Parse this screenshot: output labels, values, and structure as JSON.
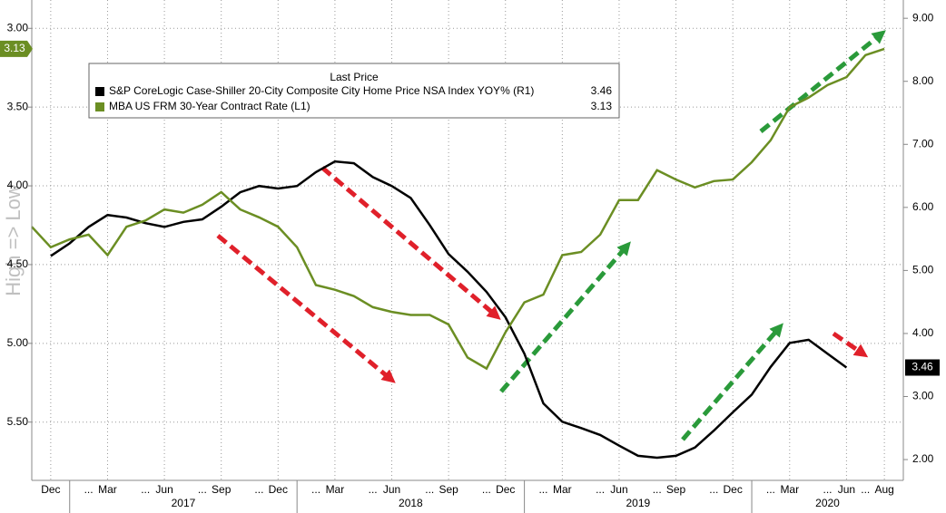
{
  "chart_data": {
    "type": "line",
    "legend_title": "Last Price",
    "y_label": "High => Low",
    "y_inverted": true,
    "ylim": [
      2.82,
      5.87
    ],
    "yticks": [
      {
        "value": 3.0,
        "label": "3.00"
      },
      {
        "value": 3.5,
        "label": "3.50"
      },
      {
        "value": 4.0,
        "label": "4.00"
      },
      {
        "value": 4.5,
        "label": "4.50"
      },
      {
        "value": 5.0,
        "label": "5.00"
      },
      {
        "value": 5.5,
        "label": "5.50"
      }
    ],
    "y2lim": [
      1.67,
      9.29
    ],
    "y2ticks": [
      {
        "value": 2,
        "label": "2.00"
      },
      {
        "value": 3,
        "label": "3.00"
      },
      {
        "value": 4,
        "label": "4.00"
      },
      {
        "value": 5,
        "label": "5.00"
      },
      {
        "value": 6,
        "label": "6.00"
      },
      {
        "value": 7,
        "label": "7.00"
      },
      {
        "value": 8,
        "label": "8.00"
      },
      {
        "value": 9,
        "label": "9.00"
      }
    ],
    "xlim": [
      "2016-11",
      "2020-09"
    ],
    "xticks": [
      {
        "value": "2016-12",
        "label": "Dec"
      },
      {
        "value": "2017-02",
        "label": "..."
      },
      {
        "value": "2017-03",
        "label": "Mar"
      },
      {
        "value": "2017-05",
        "label": "..."
      },
      {
        "value": "2017-06",
        "label": "Jun"
      },
      {
        "value": "2017-08",
        "label": "..."
      },
      {
        "value": "2017-09",
        "label": "Sep"
      },
      {
        "value": "2017-11",
        "label": "..."
      },
      {
        "value": "2017-12",
        "label": "Dec"
      },
      {
        "value": "2018-02",
        "label": "..."
      },
      {
        "value": "2018-03",
        "label": "Mar"
      },
      {
        "value": "2018-05",
        "label": "..."
      },
      {
        "value": "2018-06",
        "label": "Jun"
      },
      {
        "value": "2018-08",
        "label": "..."
      },
      {
        "value": "2018-09",
        "label": "Sep"
      },
      {
        "value": "2018-11",
        "label": "..."
      },
      {
        "value": "2018-12",
        "label": "Dec"
      },
      {
        "value": "2019-02",
        "label": "..."
      },
      {
        "value": "2019-03",
        "label": "Mar"
      },
      {
        "value": "2019-05",
        "label": "..."
      },
      {
        "value": "2019-06",
        "label": "Jun"
      },
      {
        "value": "2019-08",
        "label": "..."
      },
      {
        "value": "2019-09",
        "label": "Sep"
      },
      {
        "value": "2019-11",
        "label": "..."
      },
      {
        "value": "2019-12",
        "label": "Dec"
      },
      {
        "value": "2020-02",
        "label": "..."
      },
      {
        "value": "2020-03",
        "label": "Mar"
      },
      {
        "value": "2020-05",
        "label": "..."
      },
      {
        "value": "2020-06",
        "label": "Jun"
      },
      {
        "value": "2020-07",
        "label": "..."
      },
      {
        "value": "2020-08",
        "label": "Aug"
      }
    ],
    "years": [
      "2017",
      "2018",
      "2019",
      "2020"
    ],
    "grid": true,
    "series": [
      {
        "name": "S&P CoreLogic Case-Shiller 20-City Composite City Home Price NSA Index YOY%  (R1)",
        "color": "#000000",
        "axis": "y2",
        "x": [
          "2016-12",
          "2017-01",
          "2017-02",
          "2017-03",
          "2017-04",
          "2017-05",
          "2017-06",
          "2017-07",
          "2017-08",
          "2017-09",
          "2017-10",
          "2017-11",
          "2017-12",
          "2018-01",
          "2018-02",
          "2018-03",
          "2018-04",
          "2018-05",
          "2018-06",
          "2018-07",
          "2018-08",
          "2018-09",
          "2018-10",
          "2018-11",
          "2018-12",
          "2019-01",
          "2019-02",
          "2019-03",
          "2019-04",
          "2019-05",
          "2019-06",
          "2019-07",
          "2019-08",
          "2019-09",
          "2019-10",
          "2019-11",
          "2019-12",
          "2020-01",
          "2020-02",
          "2020-03",
          "2020-04",
          "2020-05",
          "2020-06"
        ],
        "values": [
          5.23,
          5.43,
          5.69,
          5.88,
          5.84,
          5.75,
          5.69,
          5.77,
          5.81,
          6.01,
          6.24,
          6.34,
          6.3,
          6.34,
          6.56,
          6.73,
          6.7,
          6.48,
          6.34,
          6.15,
          5.72,
          5.26,
          4.98,
          4.66,
          4.26,
          3.68,
          2.89,
          2.6,
          2.5,
          2.39,
          2.22,
          2.06,
          2.03,
          2.06,
          2.19,
          2.46,
          2.75,
          3.03,
          3.47,
          3.85,
          3.9,
          3.68,
          3.46
        ]
      },
      {
        "name": "MBA US FRM 30-Year Contract Rate  (L1)",
        "color": "#6b8e23",
        "axis": "y",
        "x": [
          "2016-11",
          "2016-12",
          "2017-01",
          "2017-02",
          "2017-03",
          "2017-04",
          "2017-05",
          "2017-06",
          "2017-07",
          "2017-08",
          "2017-09",
          "2017-10",
          "2017-11",
          "2017-12",
          "2018-01",
          "2018-02",
          "2018-03",
          "2018-04",
          "2018-05",
          "2018-06",
          "2018-07",
          "2018-08",
          "2018-09",
          "2018-10",
          "2018-11",
          "2018-12",
          "2019-01",
          "2019-02",
          "2019-03",
          "2019-04",
          "2019-05",
          "2019-06",
          "2019-07",
          "2019-08",
          "2019-09",
          "2019-10",
          "2019-11",
          "2019-12",
          "2020-01",
          "2020-02",
          "2020-03",
          "2020-04",
          "2020-05",
          "2020-06",
          "2020-07",
          "2020-08"
        ],
        "values": [
          4.26,
          4.39,
          4.34,
          4.31,
          4.44,
          4.26,
          4.22,
          4.15,
          4.17,
          4.12,
          4.04,
          4.15,
          4.2,
          4.26,
          4.39,
          4.63,
          4.66,
          4.7,
          4.77,
          4.8,
          4.82,
          4.82,
          4.88,
          5.09,
          5.16,
          4.93,
          4.74,
          4.69,
          4.44,
          4.42,
          4.31,
          4.09,
          4.09,
          3.9,
          3.96,
          4.01,
          3.97,
          3.96,
          3.85,
          3.71,
          3.5,
          3.44,
          3.36,
          3.31,
          3.17,
          3.13
        ]
      }
    ]
  }
}
